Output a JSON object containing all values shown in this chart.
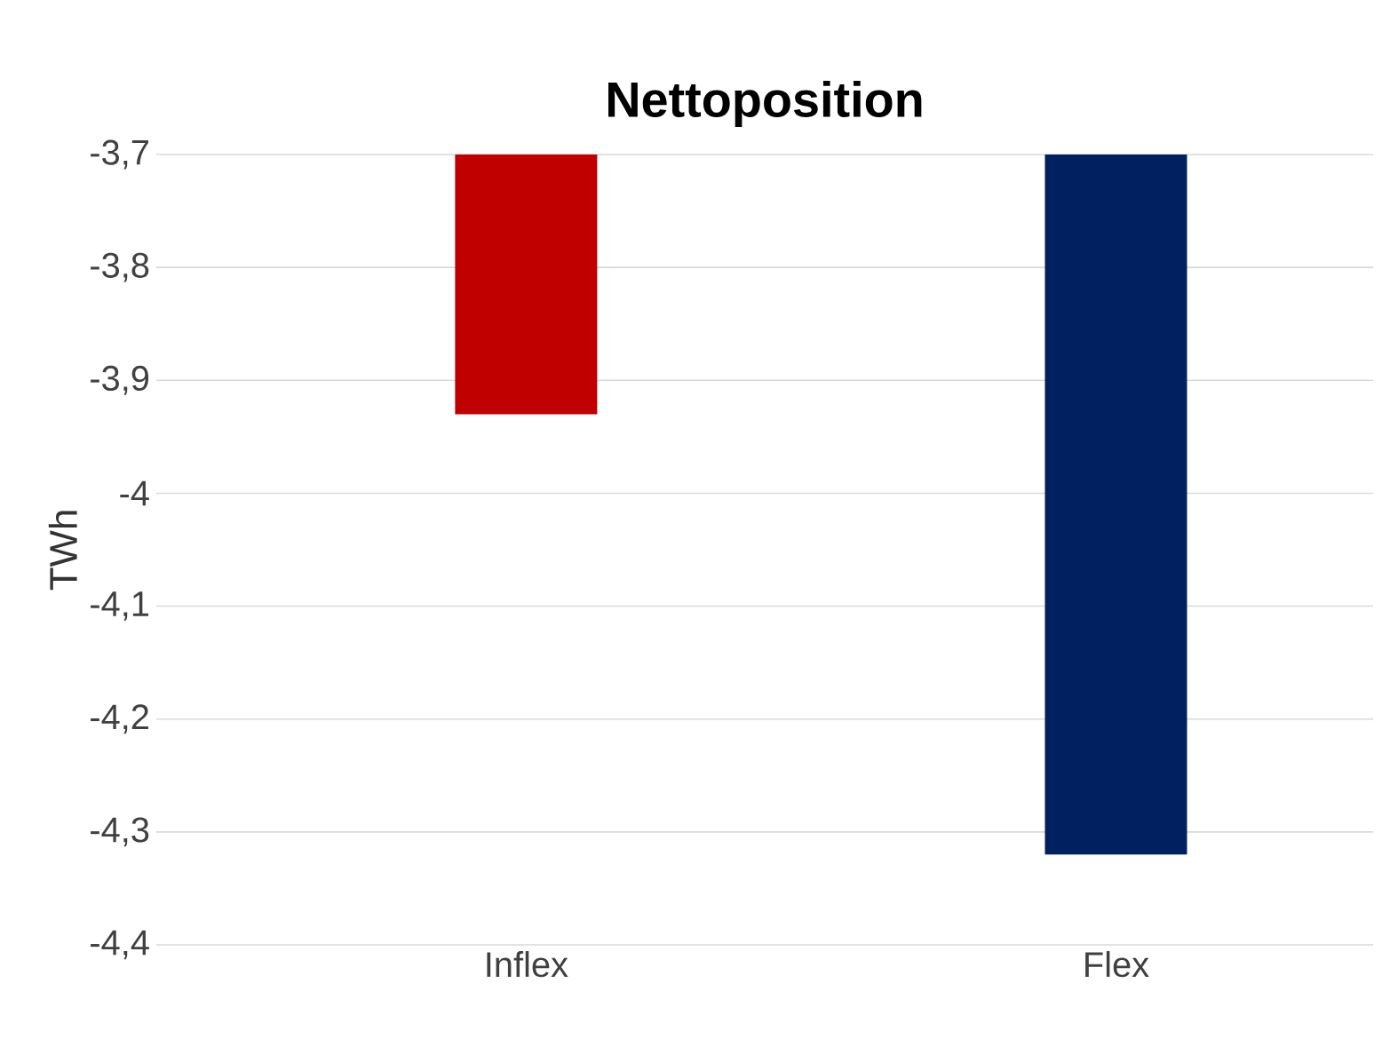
{
  "chart_data": {
    "type": "bar",
    "title": "Nettoposition",
    "ylabel": "TWh",
    "categories": [
      "Inflex",
      "Flex"
    ],
    "values": [
      -3.93,
      -4.32
    ],
    "colors": [
      "#c00000",
      "#002060"
    ],
    "ylim": [
      -4.4,
      -3.7
    ],
    "yticks": [
      {
        "value": -4.4,
        "label": "-4,4"
      },
      {
        "value": -4.3,
        "label": "-4,3"
      },
      {
        "value": -4.2,
        "label": "-4,2"
      },
      {
        "value": -4.1,
        "label": "-4,1"
      },
      {
        "value": -4,
        "label": "-4"
      },
      {
        "value": -3.9,
        "label": "-3,9"
      },
      {
        "value": -3.8,
        "label": "-3,8"
      },
      {
        "value": -3.7,
        "label": "-3,7"
      }
    ],
    "grid": "y"
  }
}
